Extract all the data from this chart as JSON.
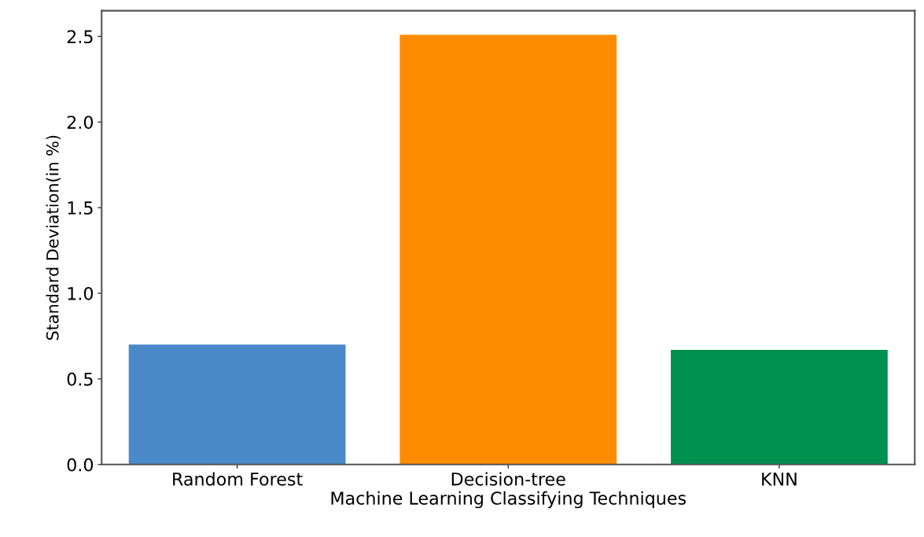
{
  "chart_data": {
    "type": "bar",
    "xlabel": "Machine Learning Classifying Techniques",
    "ylabel": "Standard Deviation(in %)",
    "categories": [
      "Random Forest",
      "Decision-tree",
      "KNN"
    ],
    "values": [
      0.7,
      2.51,
      0.67
    ],
    "colors": [
      "#4a89c8",
      "#ff8c00",
      "#009150"
    ],
    "ylim": [
      0,
      2.65
    ],
    "yticks": [
      {
        "value": 0,
        "label": "0.0"
      },
      0.5,
      {
        "value": 1,
        "label": "1.0"
      },
      1.5,
      {
        "value": 2,
        "label": "2.0"
      },
      2.5
    ],
    "grid": false,
    "legend": false
  }
}
